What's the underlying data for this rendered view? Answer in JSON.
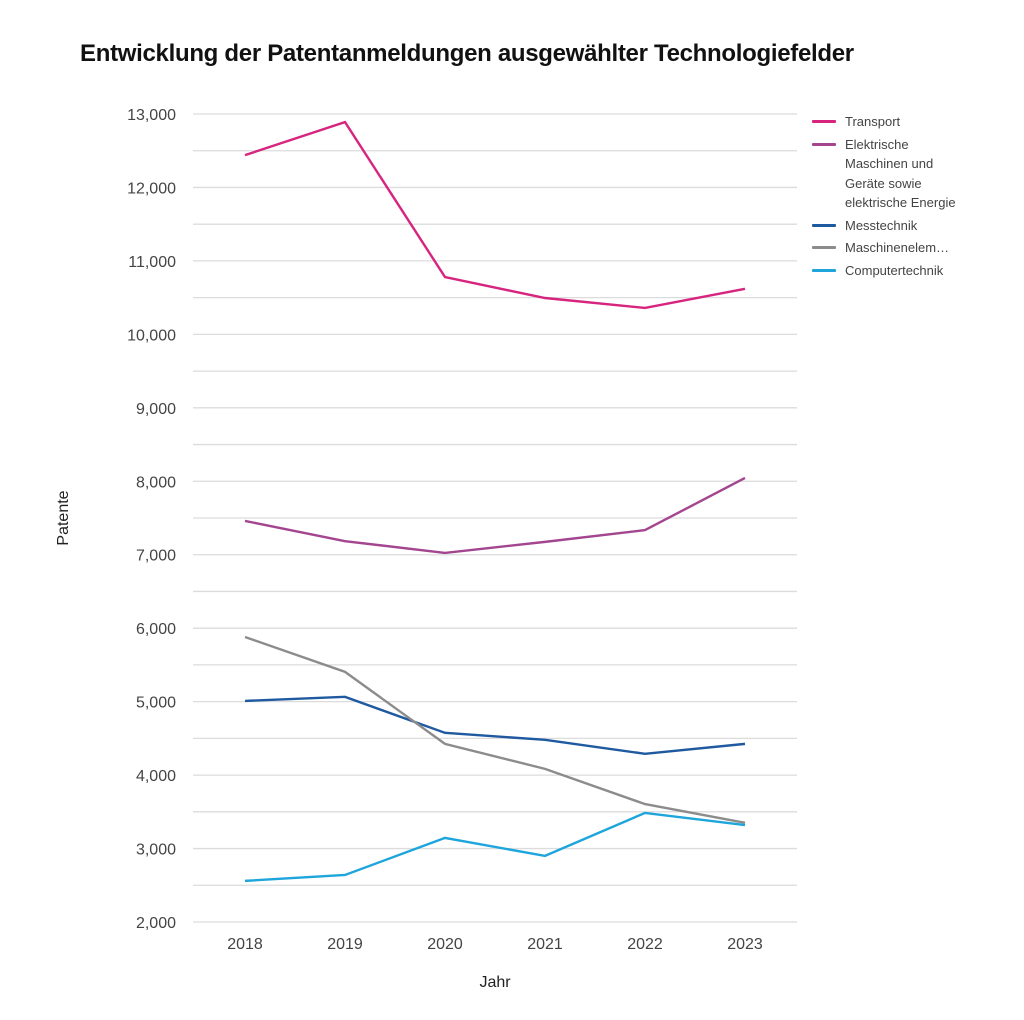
{
  "chart_data": {
    "type": "line",
    "title": "Entwicklung der Patentanmeldungen ausgewählter Technologiefelder",
    "xlabel": "Jahr",
    "ylabel": "Patente",
    "x": [
      "2018",
      "2019",
      "2020",
      "2021",
      "2022",
      "2023"
    ],
    "ylim": [
      2000,
      13000
    ],
    "yticks": [
      2000,
      3000,
      4000,
      5000,
      6000,
      7000,
      8000,
      9000,
      10000,
      11000,
      12000,
      13000
    ],
    "ytick_labels": [
      "2,000",
      "3,000",
      "4,000",
      "5,000",
      "6,000",
      "7,000",
      "8,000",
      "9,000",
      "10,000",
      "11,000",
      "12,000",
      "13,000"
    ],
    "minor_grid_step": 500,
    "grid": true,
    "legend_position": "right",
    "series": [
      {
        "name": "Transport",
        "legend_label": "Transport",
        "color": "#d6247f",
        "values": [
          12440,
          12890,
          10780,
          10495,
          10360,
          10620
        ]
      },
      {
        "name": "Elektrische Maschinen und Geräte sowie elektrische Energie",
        "legend_label": "Elektrische Maschinen und Geräte sowie elektrische Energie",
        "color": "#a3468f",
        "values": [
          7460,
          7185,
          7025,
          7175,
          7335,
          8045
        ]
      },
      {
        "name": "Messtechnik",
        "legend_label": "Messtechnik",
        "color": "#1f5aa0",
        "values": [
          5010,
          5065,
          4575,
          4480,
          4290,
          4425
        ]
      },
      {
        "name": "Maschinenelemente",
        "legend_label": "Maschinenelem…",
        "color": "#8c8c8c",
        "values": [
          5880,
          5405,
          4425,
          4085,
          3605,
          3350
        ]
      },
      {
        "name": "Computertechnik",
        "legend_label": "Computertechnik",
        "color": "#1ea5dc",
        "values": [
          2560,
          2640,
          3145,
          2900,
          3485,
          3320
        ]
      }
    ]
  }
}
